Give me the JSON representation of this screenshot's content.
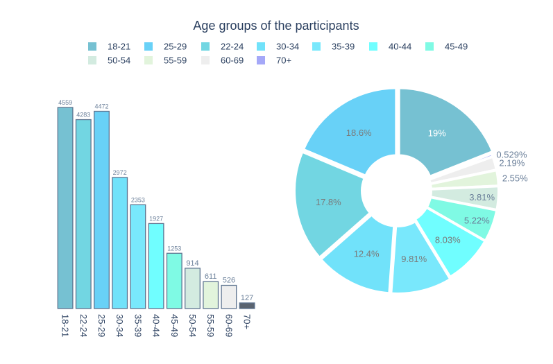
{
  "title": "Age groups of the participants",
  "chart_data": [
    {
      "type": "bar",
      "categories": [
        "18-21",
        "22-24",
        "25-29",
        "30-34",
        "35-39",
        "40-44",
        "45-49",
        "50-54",
        "55-59",
        "60-69",
        "70+"
      ],
      "values": [
        4559,
        4283,
        4472,
        2972,
        2353,
        1927,
        1253,
        914,
        611,
        526,
        127
      ],
      "colors": [
        "#76c1d2",
        "#72d6e2",
        "#68d1f7",
        "#71e2fa",
        "#79e8fc",
        "#70feff",
        "#7ffae4",
        "#d3ebe0",
        "#e2f4dc",
        "#eeeeee",
        "#5b6470"
      ],
      "ylim": [
        0,
        4700
      ],
      "value_labels": true
    },
    {
      "type": "pie",
      "hole": true,
      "slices": [
        {
          "label": "18-21",
          "value": 4559,
          "percent": "19%",
          "color": "#76c1d2"
        },
        {
          "label": "70+",
          "value": 127,
          "percent": "0.529%",
          "color": "#a5a8f8"
        },
        {
          "label": "60-69",
          "value": 526,
          "percent": "2.19%",
          "color": "#eeeeee"
        },
        {
          "label": "55-59",
          "value": 611,
          "percent": "2.55%",
          "color": "#e2f4dc"
        },
        {
          "label": "50-54",
          "value": 914,
          "percent": "3.81%",
          "color": "#d3ebe0"
        },
        {
          "label": "45-49",
          "value": 1253,
          "percent": "5.22%",
          "color": "#7ffae4"
        },
        {
          "label": "40-44",
          "value": 1927,
          "percent": "8.03%",
          "color": "#70feff"
        },
        {
          "label": "35-39",
          "value": 2353,
          "percent": "9.81%",
          "color": "#79e8fc"
        },
        {
          "label": "30-34",
          "value": 2972,
          "percent": "12.4%",
          "color": "#71e2fa"
        },
        {
          "label": "22-24",
          "value": 4283,
          "percent": "17.8%",
          "color": "#72d6e2"
        },
        {
          "label": "25-29",
          "value": 4472,
          "percent": "18.6%",
          "color": "#68d1f7"
        }
      ]
    }
  ],
  "legend": {
    "placement": "top",
    "items": [
      {
        "label": "18-21",
        "color": "#76c1d2"
      },
      {
        "label": "25-29",
        "color": "#68d1f7"
      },
      {
        "label": "22-24",
        "color": "#72d6e2"
      },
      {
        "label": "30-34",
        "color": "#71e2fa"
      },
      {
        "label": "35-39",
        "color": "#79e8fc"
      },
      {
        "label": "40-44",
        "color": "#70feff"
      },
      {
        "label": "45-49",
        "color": "#7ffae4"
      },
      {
        "label": "50-54",
        "color": "#d3ebe0"
      },
      {
        "label": "55-59",
        "color": "#e2f4dc"
      },
      {
        "label": "60-69",
        "color": "#eeeeee"
      },
      {
        "label": "70+",
        "color": "#a5a8f8"
      }
    ]
  }
}
